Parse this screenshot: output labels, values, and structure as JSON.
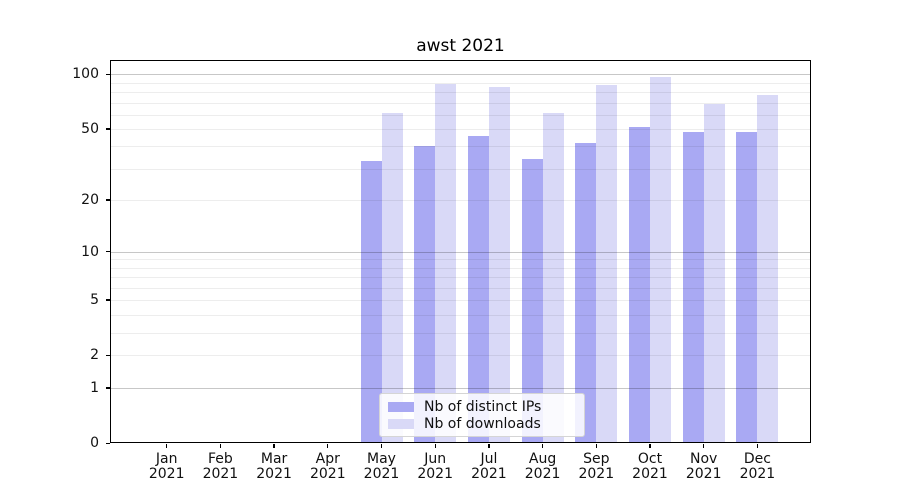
{
  "figure": {
    "title": "awst 2021"
  },
  "chart_data": {
    "type": "bar",
    "title": "awst 2021",
    "categories": [
      "Jan 2021",
      "Feb 2021",
      "Mar 2021",
      "Apr 2021",
      "May 2021",
      "Jun 2021",
      "Jul 2021",
      "Aug 2021",
      "Sep 2021",
      "Oct 2021",
      "Nov 2021",
      "Dec 2021"
    ],
    "x_tick_months": [
      "Jan",
      "Feb",
      "Mar",
      "Apr",
      "May",
      "Jun",
      "Jul",
      "Aug",
      "Sep",
      "Oct",
      "Nov",
      "Dec"
    ],
    "x_tick_year": "2021",
    "series": [
      {
        "name": "Nb of distinct IPs",
        "color": "#a9a9f3",
        "values": [
          null,
          null,
          null,
          null,
          33,
          40,
          46,
          34,
          42,
          51,
          48,
          48
        ]
      },
      {
        "name": "Nb of downloads",
        "color": "#d9d9f7",
        "values": [
          null,
          null,
          null,
          null,
          61,
          89,
          85,
          61,
          87,
          97,
          69,
          77
        ]
      }
    ],
    "yscale": "log1p",
    "ylabel": "",
    "xlabel": "",
    "ylim": [
      0,
      120
    ],
    "y_tick_values": [
      0,
      1,
      2,
      5,
      10,
      20,
      50,
      100
    ],
    "y_major_gridlines": [
      1,
      10,
      100
    ],
    "y_minor_gridlines": [
      2,
      3,
      4,
      5,
      6,
      7,
      8,
      9,
      20,
      30,
      40,
      50,
      60,
      70,
      80,
      90
    ],
    "grid": true,
    "legend_position": "lower center",
    "colors": {
      "bar_dark": "#a9a9f3",
      "bar_light": "#d9d9f7",
      "major_grid": "rgba(0,0,0,0.22)",
      "minor_grid": "rgba(0,0,0,0.07)",
      "spine": "#000000",
      "text": "#111111"
    }
  }
}
